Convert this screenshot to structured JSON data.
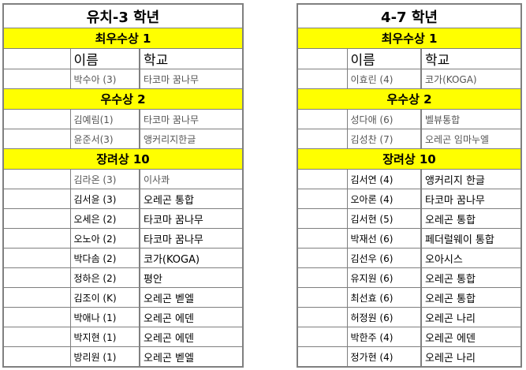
{
  "tables": [
    {
      "title": "유치-3 학년",
      "header": {
        "name": "이름",
        "school": "학교"
      },
      "sections": [
        {
          "award": "최우수상 1",
          "rows": [
            {
              "name": "박수아  (3)",
              "school": "타코마 꿈나무",
              "gray": true
            }
          ]
        },
        {
          "award": "우수상 2",
          "rows": [
            {
              "name": "김예림(1)",
              "school": "타코마 꿈나무",
              "gray": true
            },
            {
              "name": "윤준서(3)",
              "school": "앵커리지한글",
              "gray": true
            }
          ]
        },
        {
          "award": "장려상 10",
          "rows": [
            {
              "name": "김라온 (3)",
              "school": "이사콰",
              "gray": true
            },
            {
              "name": "김서윤 (3)",
              "school": "오레곤 통합"
            },
            {
              "name": "오세은 (2)",
              "school": "타코마 꿈나무"
            },
            {
              "name": "오노아 (2)",
              "school": "타코마 꿈나무"
            },
            {
              "name": "박다솜 (2)",
              "school": "코가(KOGA)"
            },
            {
              "name": "정하은 (2)",
              "school": "평안"
            },
            {
              "name": "김조이 (K)",
              "school": "오레곤 벧엘"
            },
            {
              "name": "박애나 (1)",
              "school": "오레곤 에덴"
            },
            {
              "name": "박지현 (1)",
              "school": "오레곤 에덴"
            },
            {
              "name": "방리원 (1)",
              "school": "오레곤 벧엘"
            }
          ]
        }
      ]
    },
    {
      "title": "4-7 학년",
      "header": {
        "name": "이름",
        "school": "학교"
      },
      "sections": [
        {
          "award": "최우수상 1",
          "rows": [
            {
              "name": "이효린 (4)",
              "school": "코가(KOGA)",
              "gray": true
            }
          ]
        },
        {
          "award": "우수상 2",
          "rows": [
            {
              "name": "성다애 (6)",
              "school": "벨뷰통합",
              "gray": true
            },
            {
              "name": "김성찬 (7)",
              "school": "오레곤 임마누엘",
              "gray": true
            }
          ]
        },
        {
          "award": "장려상 10",
          "rows": [
            {
              "name": "김서연 (4)",
              "school": "앵커리지 한글"
            },
            {
              "name": "오아론 (4)",
              "school": "타코마 꿈나무"
            },
            {
              "name": "김서현 (5)",
              "school": "오레곤 통합"
            },
            {
              "name": "박재선 (6)",
              "school": "페더럴웨이 통합"
            },
            {
              "name": "김선우 (6)",
              "school": "오아시스"
            },
            {
              "name": "유지원 (6)",
              "school": "오레곤 통합"
            },
            {
              "name": "최선효 (6)",
              "school": "오레곤 통합"
            },
            {
              "name": "허정원 (6)",
              "school": "오레곤 나리"
            },
            {
              "name": "박한주 (4)",
              "school": "오레곤 에덴"
            },
            {
              "name": "정가현 (4)",
              "school": "오레곤 나리"
            }
          ]
        }
      ]
    }
  ]
}
